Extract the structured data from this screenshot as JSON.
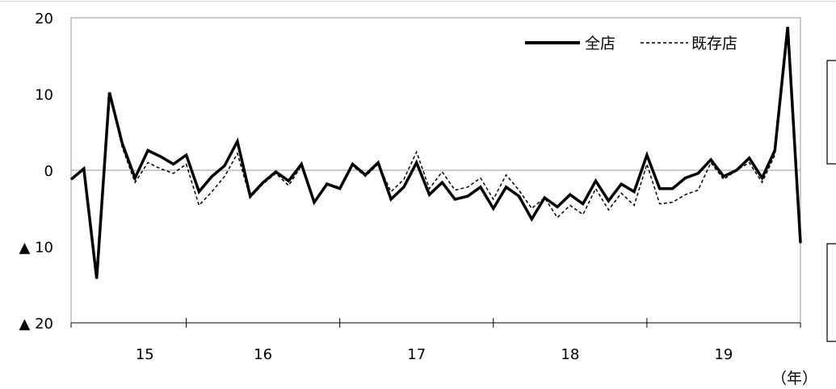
{
  "chart_data": {
    "type": "line",
    "title": "",
    "xlabel": "",
    "ylabel": "",
    "x_unit_label": "（年）",
    "ylim": [
      -20,
      20
    ],
    "y_ticks": [
      {
        "value": 20,
        "label": "20"
      },
      {
        "value": 10,
        "label": "10"
      },
      {
        "value": 0,
        "label": "0"
      },
      {
        "value": -10,
        "label": "▲ 10"
      },
      {
        "value": -20,
        "label": "▲ 20"
      }
    ],
    "x_tick_labels": [
      "15",
      "16",
      "17",
      "18",
      "19"
    ],
    "grid": false,
    "zero_line": true,
    "legend": {
      "placement": "top-right",
      "entries": [
        {
          "name": "全店",
          "style": "solid"
        },
        {
          "name": "既存店",
          "style": "dashed"
        }
      ]
    },
    "series": [
      {
        "name": "全店",
        "style": "solid",
        "values": [
          -1.2,
          0.2,
          -14.2,
          10.2,
          3.5,
          -1.0,
          2.6,
          1.8,
          0.8,
          2.0,
          -2.8,
          -0.8,
          0.6,
          3.8,
          -3.4,
          -1.6,
          -0.2,
          -1.4,
          0.8,
          -4.2,
          -1.8,
          -2.4,
          0.8,
          -0.6,
          1.0,
          -3.8,
          -2.2,
          1.0,
          -3.2,
          -1.6,
          -3.8,
          -3.4,
          -2.2,
          -5.0,
          -2.2,
          -3.4,
          -6.4,
          -3.6,
          -4.8,
          -3.2,
          -4.4,
          -1.4,
          -4.0,
          -1.8,
          -2.8,
          2.0,
          -2.4,
          -2.4,
          -1.0,
          -0.4,
          1.4,
          -0.8,
          0.0,
          1.6,
          -1.0,
          2.6,
          18.8,
          -9.5
        ]
      },
      {
        "name": "既存店",
        "style": "dashed",
        "values": [
          -1.2,
          0.2,
          -14.4,
          10.0,
          3.0,
          -1.6,
          1.0,
          0.2,
          -0.4,
          0.8,
          -4.6,
          -2.8,
          -0.8,
          2.2,
          -3.6,
          -1.8,
          -0.4,
          -2.0,
          0.6,
          -4.2,
          -1.8,
          -2.2,
          0.6,
          -0.8,
          0.8,
          -2.8,
          -1.2,
          2.4,
          -2.4,
          -0.2,
          -2.6,
          -2.2,
          -1.0,
          -3.8,
          -0.6,
          -2.6,
          -5.0,
          -3.6,
          -6.2,
          -4.6,
          -5.8,
          -2.4,
          -5.2,
          -3.0,
          -4.6,
          0.8,
          -4.4,
          -4.2,
          -3.2,
          -2.6,
          1.0,
          -1.2,
          0.0,
          1.0,
          -1.6,
          2.0,
          18.6,
          -9.6
        ]
      }
    ]
  }
}
